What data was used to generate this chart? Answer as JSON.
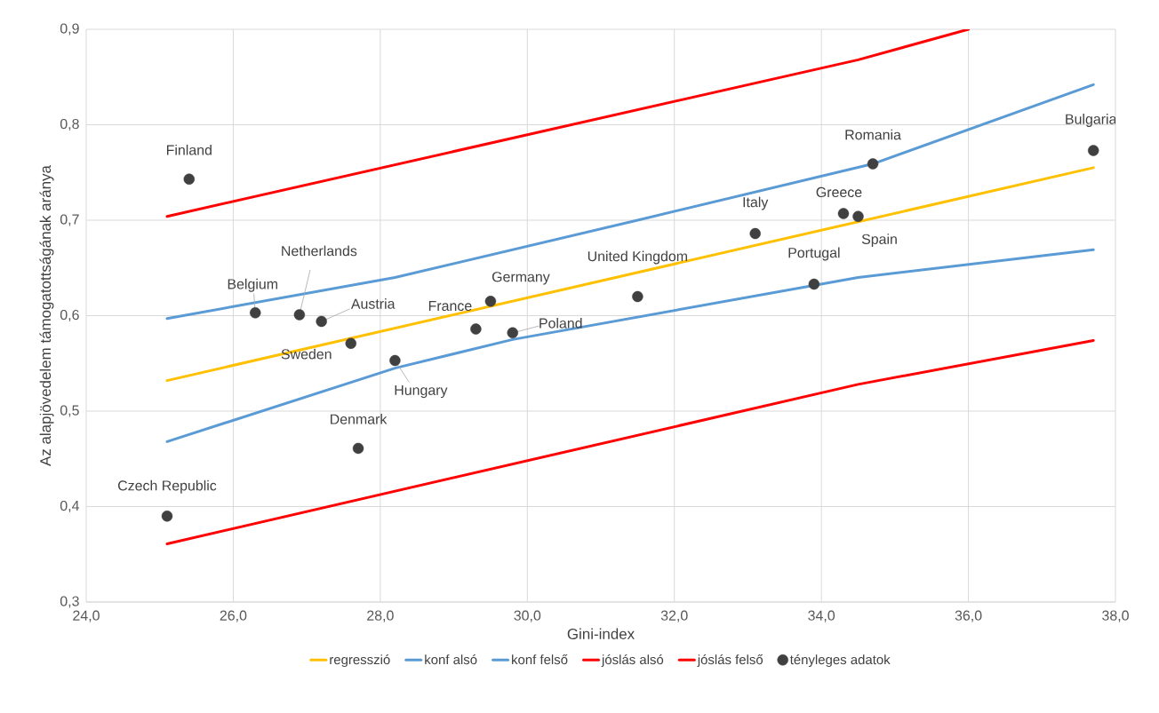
{
  "chart_data": {
    "type": "scatter",
    "xlabel": "Gini-index",
    "ylabel": "Az alapjövedelem támogatottságának aránya",
    "xlim": [
      24,
      38
    ],
    "ylim": [
      0.3,
      0.9
    ],
    "xticks": [
      {
        "value": 24,
        "label": "24,0"
      },
      {
        "value": 26,
        "label": "26,0"
      },
      {
        "value": 28,
        "label": "28,0"
      },
      {
        "value": 30,
        "label": "30,0"
      },
      {
        "value": 32,
        "label": "32,0"
      },
      {
        "value": 34,
        "label": "34,0"
      },
      {
        "value": 36,
        "label": "36,0"
      },
      {
        "value": 38,
        "label": "38,0"
      }
    ],
    "yticks": [
      {
        "value": 0.3,
        "label": "0,3"
      },
      {
        "value": 0.4,
        "label": "0,4"
      },
      {
        "value": 0.5,
        "label": "0,5"
      },
      {
        "value": 0.6,
        "label": "0,6"
      },
      {
        "value": 0.7,
        "label": "0,7"
      },
      {
        "value": 0.8,
        "label": "0,8"
      },
      {
        "value": 0.9,
        "label": "0,9"
      }
    ],
    "grid": true,
    "legend": "bottom",
    "series": [
      {
        "name": "regresszió",
        "type": "line",
        "color": "#ffc000",
        "x": [
          25.1,
          37.7
        ],
        "values": [
          0.532,
          0.755
        ]
      },
      {
        "name": "konf alsó",
        "type": "line",
        "color": "#5b9bd5",
        "x": [
          25.1,
          28.2,
          29.8,
          34.5,
          37.7
        ],
        "values": [
          0.468,
          0.545,
          0.575,
          0.64,
          0.669
        ]
      },
      {
        "name": "konf felső",
        "type": "line",
        "color": "#5b9bd5",
        "x": [
          25.1,
          28.2,
          31.5,
          34.7,
          37.7
        ],
        "values": [
          0.597,
          0.64,
          0.7,
          0.759,
          0.842
        ]
      },
      {
        "name": "jóslás alsó",
        "type": "line",
        "color": "#ff0000",
        "x": [
          25.1,
          34.5,
          37.7
        ],
        "values": [
          0.361,
          0.528,
          0.574
        ]
      },
      {
        "name": "jóslás felső",
        "type": "line",
        "color": "#ff0000",
        "x": [
          25.1,
          34.5,
          36.0
        ],
        "values": [
          0.704,
          0.868,
          0.9
        ]
      },
      {
        "name": "tényleges adatok",
        "color": "#404040",
        "x": [
          25.4,
          25.1,
          26.3,
          26.9,
          27.2,
          27.6,
          27.7,
          28.2,
          29.3,
          29.5,
          29.8,
          31.5,
          33.1,
          33.9,
          34.3,
          34.5,
          34.7,
          37.7
        ],
        "values": [
          0.743,
          0.39,
          0.603,
          0.601,
          0.594,
          0.571,
          0.461,
          0.553,
          0.586,
          0.615,
          0.582,
          0.62,
          0.686,
          0.633,
          0.707,
          0.704,
          0.759,
          0.773
        ]
      }
    ],
    "annotations": [
      {
        "text": "Finland",
        "x": 25.4,
        "y": 0.743
      },
      {
        "text": "Czech Republic",
        "x": 25.1,
        "y": 0.39
      },
      {
        "text": "Belgium",
        "x": 26.3,
        "y": 0.603
      },
      {
        "text": "Netherlands",
        "x": 26.9,
        "y": 0.601
      },
      {
        "text": "Austria",
        "x": 27.2,
        "y": 0.594
      },
      {
        "text": "Sweden",
        "x": 27.6,
        "y": 0.571
      },
      {
        "text": "Denmark",
        "x": 27.7,
        "y": 0.461
      },
      {
        "text": "Hungary",
        "x": 28.2,
        "y": 0.553
      },
      {
        "text": "France",
        "x": 29.3,
        "y": 0.586
      },
      {
        "text": "Germany",
        "x": 29.5,
        "y": 0.615
      },
      {
        "text": "Poland",
        "x": 29.8,
        "y": 0.582
      },
      {
        "text": "United Kingdom",
        "x": 31.5,
        "y": 0.62
      },
      {
        "text": "Italy",
        "x": 33.1,
        "y": 0.686
      },
      {
        "text": "Portugal",
        "x": 33.9,
        "y": 0.633
      },
      {
        "text": "Greece",
        "x": 34.3,
        "y": 0.707
      },
      {
        "text": "Spain",
        "x": 34.5,
        "y": 0.704
      },
      {
        "text": "Romania",
        "x": 34.7,
        "y": 0.759
      },
      {
        "text": "Bulgaria",
        "x": 37.7,
        "y": 0.773
      }
    ]
  }
}
